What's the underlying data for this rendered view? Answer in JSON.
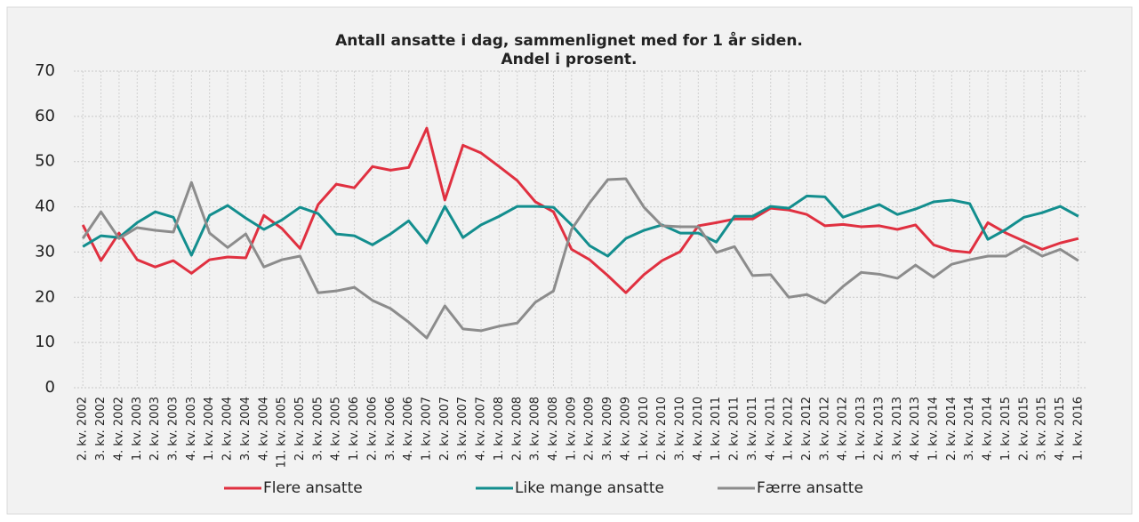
{
  "chart_data": {
    "type": "line",
    "title": "Antall ansatte i dag, sammenlignet med for 1 år siden.",
    "subtitle": "Andel i prosent.",
    "categories": [
      "2. kv. 2002",
      "3. kv. 2002",
      "4. kv. 2002",
      "1. kv. 2003",
      "2. kv. 2003",
      "3. kv. 2003",
      "4. kv. 2003",
      "1. kv. 2004",
      "2. kv. 2004",
      "3. kv. 2004",
      "4. kv. 2004",
      "11. kv. 2005",
      "2. kv. 2005",
      "3. kv. 2005",
      "4. kv. 2005",
      "1. kv. 2006",
      "2. kv. 2006",
      "3. kv. 2006",
      "4. kv. 2006",
      "1. kv. 2007",
      "2. kv. 2007",
      "3. kv. 2007",
      "4. kv. 2007",
      "1. kv. 2008",
      "2. kv. 2008",
      "3. kv. 2008",
      "4. kv. 2008",
      "1. kv. 2009",
      "2. kv. 2009",
      "3. kv. 2009",
      "4. kv. 2009",
      "1. kv. 2010",
      "2. kv. 2010",
      "3. kv. 2010",
      "4. kv. 2010",
      "1. kv. 2011",
      "2. kv. 2011",
      "3. kv. 2011",
      "4. kv. 2011",
      "1. kv. 2012",
      "2. kv. 2012",
      "3. kv. 2012",
      "4. kv. 2012",
      "1. kv. 2013",
      "2. kv. 2013",
      "3. kv. 2013",
      "4. kv. 2013",
      "1. kv. 2014",
      "2. kv. 2014",
      "3. kv. 2014",
      "4. kv. 2014",
      "1. kv. 2015",
      "2. kv. 2015",
      "3. kv. 2015",
      "4. kv. 2015",
      "1. kv. 2016"
    ],
    "series": [
      {
        "name": "Flere ansatte",
        "color": "#e03040",
        "values": [
          36.0,
          28.1,
          34.2,
          28.3,
          26.7,
          28.1,
          25.3,
          28.3,
          28.9,
          28.7,
          38.1,
          35.2,
          30.8,
          40.5,
          45.0,
          44.2,
          48.9,
          48.1,
          48.7,
          57.4,
          41.5,
          53.6,
          51.9,
          48.9,
          45.8,
          41.1,
          38.9,
          30.6,
          28.3,
          24.8,
          21.0,
          25.0,
          28.1,
          30.1,
          35.8,
          36.5,
          37.3,
          37.3,
          39.7,
          39.3,
          38.3,
          35.8,
          36.1,
          35.6,
          35.8,
          35.0,
          36.0,
          31.6,
          30.3,
          29.9,
          36.5,
          34.2,
          32.4,
          30.6,
          32.0,
          33.0
        ]
      },
      {
        "name": "Like mange ansatte",
        "color": "#138e8e",
        "values": [
          31.2,
          33.6,
          33.2,
          36.5,
          38.9,
          37.7,
          29.3,
          38.1,
          40.3,
          37.5,
          35.0,
          37.1,
          39.9,
          38.5,
          34.0,
          33.6,
          31.6,
          34.0,
          36.9,
          32.0,
          40.1,
          33.2,
          36.0,
          37.9,
          40.1,
          40.1,
          39.9,
          36.0,
          31.4,
          29.1,
          33.0,
          34.8,
          36.0,
          34.2,
          34.2,
          32.2,
          37.9,
          37.9,
          40.1,
          39.7,
          42.4,
          42.2,
          37.7,
          39.1,
          40.5,
          38.3,
          39.5,
          41.1,
          41.5,
          40.7,
          32.8,
          35.0,
          37.7,
          38.7,
          40.1,
          37.9
        ]
      },
      {
        "name": "Færre ansatte",
        "color": "#8c8c8c",
        "values": [
          33.0,
          38.9,
          33.0,
          35.4,
          34.8,
          34.4,
          45.4,
          34.2,
          31.0,
          34.0,
          26.7,
          28.3,
          29.1,
          21.0,
          21.4,
          22.2,
          19.3,
          17.5,
          14.5,
          11.0,
          18.1,
          13.0,
          12.6,
          13.6,
          14.3,
          18.9,
          21.4,
          35.0,
          40.9,
          46.0,
          46.2,
          39.9,
          35.8,
          35.6,
          35.6,
          29.9,
          31.2,
          24.8,
          25.0,
          20.0,
          20.6,
          18.7,
          22.4,
          25.5,
          25.1,
          24.2,
          27.1,
          24.4,
          27.3,
          28.3,
          29.1,
          29.1,
          31.4,
          29.1,
          30.6,
          28.1
        ]
      }
    ],
    "ylim": [
      0,
      70
    ],
    "yticks": [
      0,
      10,
      20,
      30,
      40,
      50,
      60,
      70
    ],
    "grid": true,
    "legend": "bottom"
  }
}
